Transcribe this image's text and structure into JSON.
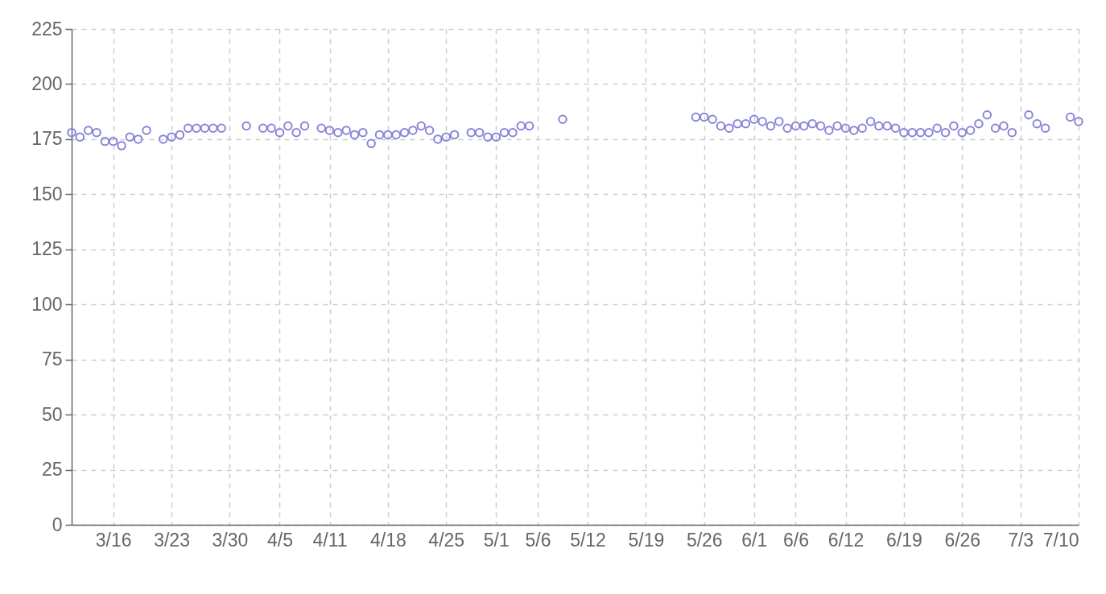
{
  "chart_data": {
    "type": "scatter",
    "color": "#8884d8",
    "marker": "circle",
    "grid": true,
    "x": [
      "--03-11",
      "--03-12",
      "--03-13",
      "--03-14",
      "--03-15",
      "--03-16",
      "--03-17",
      "--03-18",
      "--03-19",
      "--03-20",
      "--03-22",
      "--03-23",
      "--03-24",
      "--03-25",
      "--03-26",
      "--03-27",
      "--03-28",
      "--03-29",
      "--04-01",
      "--04-03",
      "--04-04",
      "--04-05",
      "--04-06",
      "--04-07",
      "--04-08",
      "--04-10",
      "--04-11",
      "--04-12",
      "--04-13",
      "--04-14",
      "--04-15",
      "--04-16",
      "--04-17",
      "--04-18",
      "--04-19",
      "--04-20",
      "--04-21",
      "--04-22",
      "--04-23",
      "--04-24",
      "--04-25",
      "--04-26",
      "--04-28",
      "--04-29",
      "--04-30",
      "--05-01",
      "--05-02",
      "--05-03",
      "--05-04",
      "--05-05",
      "--05-09",
      "--05-25",
      "--05-26",
      "--05-27",
      "--05-28",
      "--05-29",
      "--05-30",
      "--05-31",
      "--06-01",
      "--06-02",
      "--06-03",
      "--06-04",
      "--06-05",
      "--06-06",
      "--06-07",
      "--06-08",
      "--06-09",
      "--06-10",
      "--06-11",
      "--06-12",
      "--06-13",
      "--06-14",
      "--06-15",
      "--06-16",
      "--06-17",
      "--06-18",
      "--06-19",
      "--06-20",
      "--06-21",
      "--06-22",
      "--06-23",
      "--06-24",
      "--06-25",
      "--06-26",
      "--06-27",
      "--06-28",
      "--06-29",
      "--06-30",
      "--07-01",
      "--07-02",
      "--07-04",
      "--07-05",
      "--07-06",
      "--07-09",
      "--07-10"
    ],
    "values": [
      178,
      176,
      179,
      178,
      174,
      174,
      172,
      176,
      175,
      179,
      175,
      176,
      177,
      180,
      180,
      180,
      180,
      180,
      181,
      180,
      180,
      178,
      181,
      178,
      181,
      180,
      179,
      178,
      179,
      177,
      178,
      173,
      177,
      177,
      177,
      178,
      179,
      181,
      179,
      175,
      176,
      177,
      178,
      178,
      176,
      176,
      178,
      178,
      181,
      181,
      184,
      185,
      185,
      184,
      181,
      180,
      182,
      182,
      184,
      183,
      181,
      183,
      180,
      181,
      181,
      182,
      181,
      179,
      181,
      180,
      179,
      180,
      183,
      181,
      181,
      180,
      178,
      178,
      178,
      178,
      180,
      178,
      181,
      178,
      179,
      182,
      186,
      180,
      181,
      178,
      186,
      182,
      180,
      185,
      183
    ],
    "xlim": [
      "--03-11",
      "--07-10"
    ],
    "xticks": [
      {
        "value": "--03-16",
        "label": "3/16"
      },
      {
        "value": "--03-23",
        "label": "3/23"
      },
      {
        "value": "--03-30",
        "label": "3/30"
      },
      {
        "value": "--04-05",
        "label": "4/5"
      },
      {
        "value": "--04-11",
        "label": "4/11"
      },
      {
        "value": "--04-18",
        "label": "4/18"
      },
      {
        "value": "--04-25",
        "label": "4/25"
      },
      {
        "value": "--05-01",
        "label": "5/1"
      },
      {
        "value": "--05-06",
        "label": "5/6"
      },
      {
        "value": "--05-12",
        "label": "5/12"
      },
      {
        "value": "--05-19",
        "label": "5/19"
      },
      {
        "value": "--05-26",
        "label": "5/26"
      },
      {
        "value": "--06-01",
        "label": "6/1"
      },
      {
        "value": "--06-06",
        "label": "6/6"
      },
      {
        "value": "--06-12",
        "label": "6/12"
      },
      {
        "value": "--06-19",
        "label": "6/19"
      },
      {
        "value": "--06-26",
        "label": "6/26"
      },
      {
        "value": "--07-03",
        "label": "7/3"
      },
      {
        "value": "--07-10",
        "label": "7/10"
      }
    ],
    "ylim": [
      0,
      225
    ],
    "yticks": [
      0,
      25,
      50,
      75,
      100,
      125,
      150,
      175,
      200,
      225
    ]
  }
}
